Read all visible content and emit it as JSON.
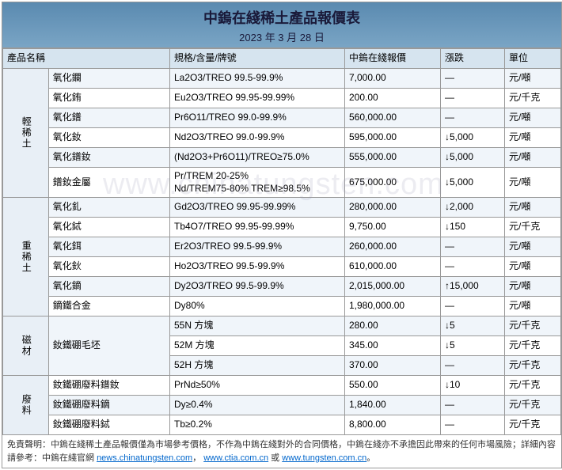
{
  "header": {
    "title": "中鎢在綫稀土產品報價表",
    "date": "2023 年 3 月 28 日"
  },
  "watermark": "www.chinatungsten.com",
  "columns": {
    "name": "產品名稱",
    "spec": "規格/含量/牌號",
    "price": "中鎢在綫報價",
    "change": "漲跌",
    "unit": "單位"
  },
  "groups": [
    {
      "category": "輕稀土",
      "rows": [
        {
          "name": "氧化鑭",
          "spec": "La2O3/TREO 99.5-99.9%",
          "price": "7,000.00",
          "change": "—",
          "unit": "元/噸"
        },
        {
          "name": "氧化銪",
          "spec": "Eu2O3/TREO 99.95-99.99%",
          "price": "200.00",
          "change": "—",
          "unit": "元/千克"
        },
        {
          "name": "氧化鐠",
          "spec": "Pr6O11/TREO 99.0-99.9%",
          "price": "560,000.00",
          "change": "—",
          "unit": "元/噸"
        },
        {
          "name": "氧化釹",
          "spec": "Nd2O3/TREO 99.0-99.9%",
          "price": "595,000.00",
          "change": "↓5,000",
          "unit": "元/噸"
        },
        {
          "name": "氧化鐠釹",
          "spec": "(Nd2O3+Pr6O11)/TREO≥75.0%",
          "price": "555,000.00",
          "change": "↓5,000",
          "unit": "元/噸"
        },
        {
          "name": "鐠釹金屬",
          "spec": "Pr/TREM 20-25%\nNd/TREM75-80% TREM≥98.5%",
          "price": "675,000.00",
          "change": "↓5,000",
          "unit": "元/噸"
        }
      ]
    },
    {
      "category": "重稀土",
      "rows": [
        {
          "name": "氧化釓",
          "spec": "Gd2O3/TREO 99.95-99.99%",
          "price": "280,000.00",
          "change": "↓2,000",
          "unit": "元/噸"
        },
        {
          "name": "氧化鋱",
          "spec": "Tb4O7/TREO 99.95-99.99%",
          "price": "9,750.00",
          "change": "↓150",
          "unit": "元/千克"
        },
        {
          "name": "氧化鉺",
          "spec": "Er2O3/TREO 99.5-99.9%",
          "price": "260,000.00",
          "change": "—",
          "unit": "元/噸"
        },
        {
          "name": "氧化鈥",
          "spec": "Ho2O3/TREO 99.5-99.9%",
          "price": "610,000.00",
          "change": "—",
          "unit": "元/噸"
        },
        {
          "name": "氧化鏑",
          "spec": "Dy2O3/TREO 99.5-99.9%",
          "price": "2,015,000.00",
          "change": "↑15,000",
          "unit": "元/噸"
        },
        {
          "name": "鏑鐵合金",
          "spec": "Dy80%",
          "price": "1,980,000.00",
          "change": "—",
          "unit": "元/噸"
        }
      ]
    },
    {
      "category": "磁材",
      "rows": [
        {
          "name": "釹鐵硼毛坯",
          "spec": "55N 方塊",
          "price": "280.00",
          "change": "↓5",
          "unit": "元/千克",
          "rowspan": 3
        },
        {
          "spec": "52M 方塊",
          "price": "345.00",
          "change": "↓5",
          "unit": "元/千克"
        },
        {
          "spec": "52H 方塊",
          "price": "370.00",
          "change": "—",
          "unit": "元/千克"
        }
      ]
    },
    {
      "category": "廢料",
      "rows": [
        {
          "name": "釹鐵硼廢料鐠釹",
          "spec": "PrNd≥50%",
          "price": "550.00",
          "change": "↓10",
          "unit": "元/千克"
        },
        {
          "name": "釹鐵硼廢料鏑",
          "spec": "Dy≥0.4%",
          "price": "1,840.00",
          "change": "—",
          "unit": "元/千克"
        },
        {
          "name": "釹鐵硼廢料鋱",
          "spec": "Tb≥0.2%",
          "price": "8,800.00",
          "change": "—",
          "unit": "元/千克"
        }
      ]
    }
  ],
  "footer": {
    "prefix": "免責聲明：中鎢在綫稀土產品報價僅為市場參考價格，不作為中鎢在綫對外的合同價格，中鎢在綫亦不承擔因此帶來的任何市場風險；詳細內容請參考：中鎢在綫官網 ",
    "links": [
      "news.chinatungsten.com",
      "www.ctia.com.cn",
      "www.tungsten.com.cn"
    ],
    "sep": "，",
    "or": " 或 ",
    "period": "。"
  }
}
